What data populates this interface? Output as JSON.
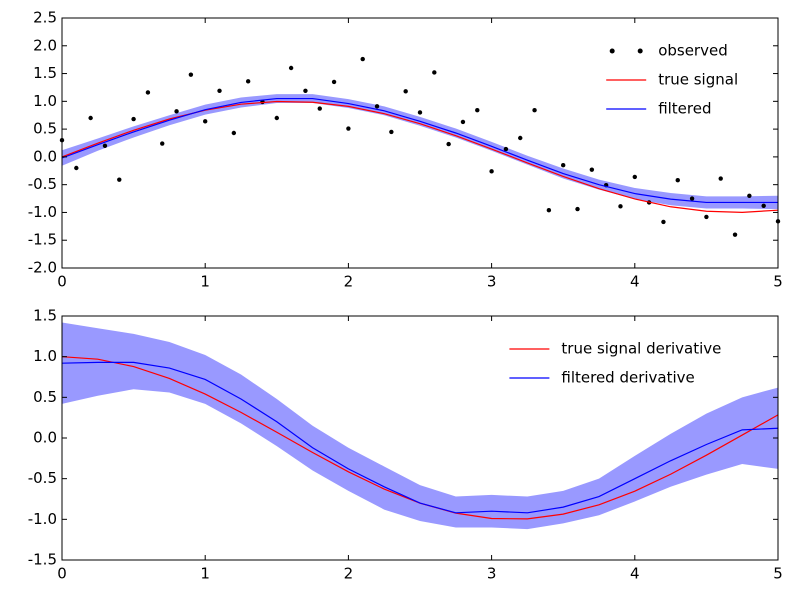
{
  "chart_data": [
    {
      "type": "line",
      "legend": "upper right",
      "xlim": [
        0,
        5
      ],
      "ylim": [
        -2,
        2.5
      ],
      "xticks": [
        0,
        1,
        2,
        3,
        4,
        5
      ],
      "yticks": [
        {
          "value": -2,
          "label": "-2.0"
        },
        -1.5,
        {
          "value": -1,
          "label": "-1.0"
        },
        -0.5,
        {
          "value": 0,
          "label": "0.0"
        },
        0.5,
        {
          "value": 1,
          "label": "1.0"
        },
        1.5,
        {
          "value": 2,
          "label": "2.0"
        },
        2.5
      ],
      "x": [
        0,
        0.25,
        0.5,
        0.75,
        1,
        1.25,
        1.5,
        1.75,
        2,
        2.25,
        2.5,
        2.75,
        3,
        3.25,
        3.5,
        3.75,
        4,
        4.25,
        4.5,
        4.75,
        5
      ],
      "series": [
        {
          "name": "observed",
          "type": "scatter",
          "color": "#000000",
          "x": [
            0,
            0.1,
            0.2,
            0.3,
            0.4,
            0.5,
            0.6,
            0.7,
            0.8,
            0.9,
            1,
            1.1,
            1.2,
            1.3,
            1.4,
            1.5,
            1.6,
            1.7,
            1.8,
            1.9,
            2,
            2.1,
            2.2,
            2.3,
            2.4,
            2.5,
            2.6,
            2.7,
            2.8,
            2.9,
            3,
            3.1,
            3.2,
            3.3,
            3.4,
            3.5,
            3.6,
            3.7,
            3.8,
            3.9,
            4,
            4.1,
            4.2,
            4.3,
            4.4,
            4.5,
            4.6,
            4.7,
            4.8,
            4.9,
            5
          ],
          "values": [
            0.3,
            -0.2,
            0.7,
            0.2,
            -0.41,
            0.68,
            1.16,
            0.24,
            0.82,
            1.48,
            0.64,
            1.19,
            0.43,
            1.36,
            0.99,
            0.7,
            1.6,
            1.19,
            0.87,
            1.35,
            0.51,
            1.76,
            0.91,
            0.45,
            1.18,
            0.8,
            1.52,
            0.23,
            0.63,
            0.84,
            -0.26,
            0.14,
            0.34,
            0.84,
            -0.96,
            -0.15,
            -0.94,
            -0.23,
            -0.51,
            -0.89,
            -0.36,
            -0.82,
            -1.17,
            -0.42,
            -0.75,
            -1.08,
            -0.39,
            -1.4,
            -0.7,
            -0.88,
            -1.16
          ]
        },
        {
          "name": "true signal",
          "color": "#ff0000",
          "values": [
            0,
            0.247,
            0.479,
            0.682,
            0.841,
            0.949,
            0.997,
            0.984,
            0.909,
            0.778,
            0.598,
            0.382,
            0.141,
            -0.108,
            -0.351,
            -0.572,
            -0.757,
            -0.898,
            -0.978,
            -0.999,
            -0.959
          ]
        },
        {
          "name": "filtered",
          "color": "#0000ff",
          "band_color": "#9999ff",
          "values": [
            -0.02,
            0.22,
            0.45,
            0.66,
            0.85,
            0.98,
            1.05,
            1.05,
            0.96,
            0.83,
            0.64,
            0.43,
            0.19,
            -0.06,
            -0.3,
            -0.5,
            -0.66,
            -0.76,
            -0.82,
            -0.82,
            -0.82
          ],
          "upper": [
            0.12,
            0.33,
            0.55,
            0.75,
            0.94,
            1.07,
            1.13,
            1.13,
            1.04,
            0.91,
            0.72,
            0.51,
            0.27,
            0.02,
            -0.21,
            -0.41,
            -0.56,
            -0.65,
            -0.71,
            -0.71,
            -0.7
          ],
          "lower": [
            -0.16,
            0.11,
            0.35,
            0.57,
            0.76,
            0.89,
            0.97,
            0.97,
            0.88,
            0.75,
            0.56,
            0.35,
            0.11,
            -0.14,
            -0.39,
            -0.59,
            -0.76,
            -0.87,
            -0.93,
            -0.93,
            -0.94
          ]
        }
      ]
    },
    {
      "type": "line",
      "legend": "upper right",
      "xlim": [
        0,
        5
      ],
      "ylim": [
        -1.5,
        1.5
      ],
      "xticks": [
        0,
        1,
        2,
        3,
        4,
        5
      ],
      "yticks": [
        -1.5,
        {
          "value": -1,
          "label": "-1.0"
        },
        -0.5,
        {
          "value": 0,
          "label": "0.0"
        },
        0.5,
        {
          "value": 1,
          "label": "1.0"
        },
        1.5
      ],
      "x": [
        0,
        0.25,
        0.5,
        0.75,
        1,
        1.25,
        1.5,
        1.75,
        2,
        2.25,
        2.5,
        2.75,
        3,
        3.25,
        3.5,
        3.75,
        4,
        4.25,
        4.5,
        4.75,
        5
      ],
      "series": [
        {
          "name": "true signal derivative",
          "color": "#ff0000",
          "values": [
            1,
            0.969,
            0.878,
            0.732,
            0.54,
            0.315,
            0.071,
            -0.178,
            -0.416,
            -0.628,
            -0.801,
            -0.924,
            -0.99,
            -0.994,
            -0.936,
            -0.821,
            -0.654,
            -0.446,
            -0.211,
            0.036,
            0.284
          ]
        },
        {
          "name": "filtered derivative",
          "color": "#0000ff",
          "band_color": "#9999ff",
          "values": [
            0.92,
            0.93,
            0.93,
            0.86,
            0.72,
            0.48,
            0.2,
            -0.12,
            -0.38,
            -0.6,
            -0.8,
            -0.92,
            -0.9,
            -0.92,
            -0.85,
            -0.72,
            -0.5,
            -0.28,
            -0.08,
            0.1,
            0.12
          ],
          "upper": [
            1.42,
            1.35,
            1.28,
            1.18,
            1.02,
            0.78,
            0.48,
            0.15,
            -0.12,
            -0.35,
            -0.58,
            -0.72,
            -0.7,
            -0.72,
            -0.65,
            -0.5,
            -0.22,
            0.05,
            0.3,
            0.5,
            0.62
          ],
          "lower": [
            0.42,
            0.52,
            0.6,
            0.56,
            0.42,
            0.18,
            -0.1,
            -0.4,
            -0.65,
            -0.88,
            -1.02,
            -1.1,
            -1.1,
            -1.12,
            -1.05,
            -0.95,
            -0.78,
            -0.6,
            -0.45,
            -0.32,
            -0.38
          ]
        }
      ]
    }
  ]
}
